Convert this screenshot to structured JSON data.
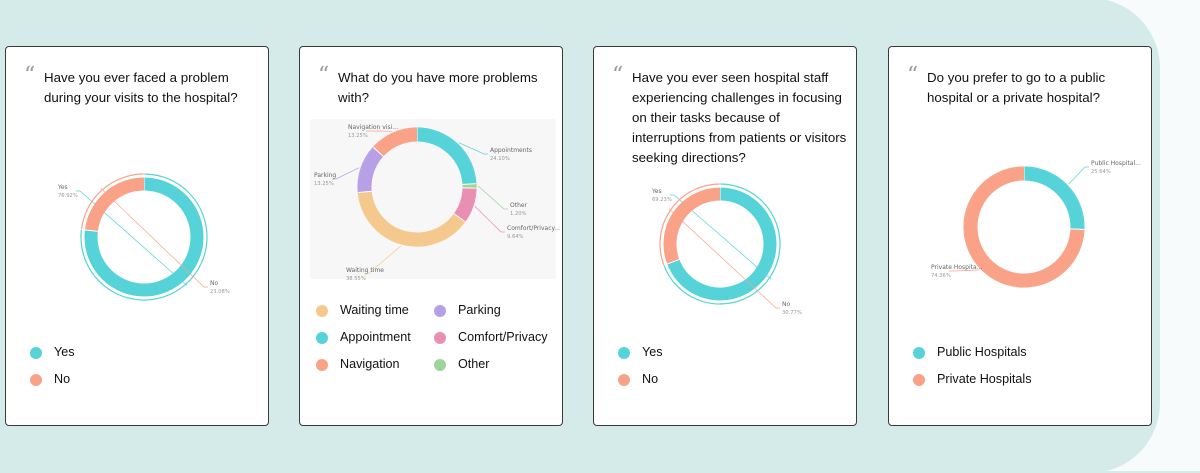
{
  "colors": {
    "teal": "#56d3d9",
    "salmon": "#f9a288",
    "peach": "#f5c98d",
    "purple": "#b8a0e6",
    "pink": "#e98fb2",
    "green": "#9ed59a"
  },
  "chart_data": [
    {
      "type": "pie",
      "question": "Have you ever faced a problem during your visits to the hospital?",
      "slices": [
        {
          "label": "Yes",
          "value": 76.92,
          "value_text": "76.92%",
          "color": "#56d3d9"
        },
        {
          "label": "No",
          "value": 23.08,
          "value_text": "23.08%",
          "color": "#f9a288"
        }
      ],
      "legend": [
        "Yes",
        "No"
      ]
    },
    {
      "type": "pie",
      "question": "What do you have more problems with?",
      "slices": [
        {
          "label": "Appointments",
          "value": 24.1,
          "value_text": "24.10%",
          "color": "#56d3d9"
        },
        {
          "label": "Other",
          "value": 1.2,
          "value_text": "1.20%",
          "color": "#9ed59a"
        },
        {
          "label": "Comfort/Privacy...",
          "value": 9.64,
          "value_text": "9.64%",
          "color": "#e98fb2"
        },
        {
          "label": "Waiting time",
          "value": 38.55,
          "value_text": "38.55%",
          "color": "#f5c98d"
        },
        {
          "label": "Parking",
          "value": 13.25,
          "value_text": "13.25%",
          "color": "#b8a0e6"
        },
        {
          "label": "Navigation visi...",
          "value": 13.25,
          "value_text": "13.25%",
          "color": "#f9a288"
        }
      ],
      "legend": [
        "Waiting time",
        "Parking",
        "Appointment",
        "Comfort/Privacy",
        "Navigation",
        "Other"
      ]
    },
    {
      "type": "pie",
      "question": "Have you ever seen hospital staff experiencing challenges in focusing on their tasks because of interruptions from patients or visitors seeking directions?",
      "slices": [
        {
          "label": "Yes",
          "value": 69.23,
          "value_text": "69.23%",
          "color": "#56d3d9"
        },
        {
          "label": "No",
          "value": 30.77,
          "value_text": "30.77%",
          "color": "#f9a288"
        }
      ],
      "legend": [
        "Yes",
        "No"
      ]
    },
    {
      "type": "pie",
      "question": "Do you prefer to go to a public hospital or a private hospital?",
      "slices": [
        {
          "label": "Public Hospital...",
          "value": 25.64,
          "value_text": "25.64%",
          "color": "#56d3d9"
        },
        {
          "label": "Private Hospita...",
          "value": 74.36,
          "value_text": "74.36%",
          "color": "#f9a288"
        }
      ],
      "legend": [
        "Public Hospitals",
        "Private Hospitals"
      ]
    }
  ]
}
